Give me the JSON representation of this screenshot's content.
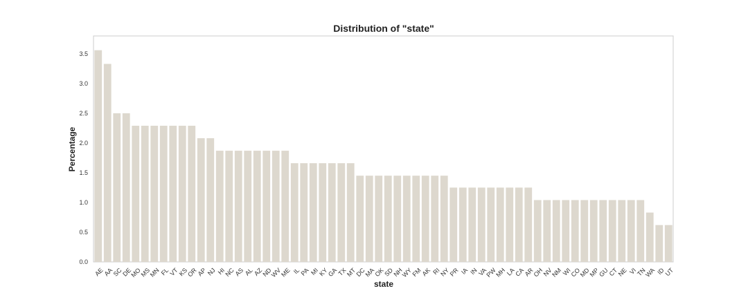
{
  "chart_data": {
    "type": "bar",
    "title": "Distribution of \"state\"",
    "xlabel": "state",
    "ylabel": "Percentage",
    "ylim": [
      0,
      3.8
    ],
    "yticks": [
      "0.0",
      "0.5",
      "1.0",
      "1.5",
      "2.0",
      "2.5",
      "3.0",
      "3.5"
    ],
    "bar_color": "#ddd8ce",
    "grid": false,
    "categories": [
      "AE",
      "AA",
      "SC",
      "DE",
      "MO",
      "MS",
      "MN",
      "FL",
      "VT",
      "KS",
      "OR",
      "AP",
      "NJ",
      "HI",
      "NC",
      "AS",
      "AL",
      "AZ",
      "ND",
      "WV",
      "ME",
      "IL",
      "PA",
      "MI",
      "KY",
      "GA",
      "TX",
      "MT",
      "DC",
      "MA",
      "OK",
      "SD",
      "NH",
      "WY",
      "FM",
      "AK",
      "RI",
      "NY",
      "PR",
      "IA",
      "IN",
      "VA",
      "PW",
      "MH",
      "LA",
      "CA",
      "AR",
      "OH",
      "NV",
      "NM",
      "WI",
      "CO",
      "MD",
      "MP",
      "GU",
      "CT",
      "NE",
      "VI",
      "TN",
      "WA",
      "ID",
      "UT"
    ],
    "values": [
      3.56,
      3.33,
      2.5,
      2.5,
      2.29,
      2.29,
      2.29,
      2.29,
      2.29,
      2.29,
      2.29,
      2.08,
      2.08,
      1.87,
      1.87,
      1.87,
      1.87,
      1.87,
      1.87,
      1.87,
      1.87,
      1.66,
      1.66,
      1.66,
      1.66,
      1.66,
      1.66,
      1.66,
      1.45,
      1.45,
      1.45,
      1.45,
      1.45,
      1.45,
      1.45,
      1.45,
      1.45,
      1.45,
      1.25,
      1.25,
      1.25,
      1.25,
      1.25,
      1.25,
      1.25,
      1.25,
      1.25,
      1.04,
      1.04,
      1.04,
      1.04,
      1.04,
      1.04,
      1.04,
      1.04,
      1.04,
      1.04,
      1.04,
      1.04,
      0.83,
      0.62,
      0.62
    ]
  }
}
